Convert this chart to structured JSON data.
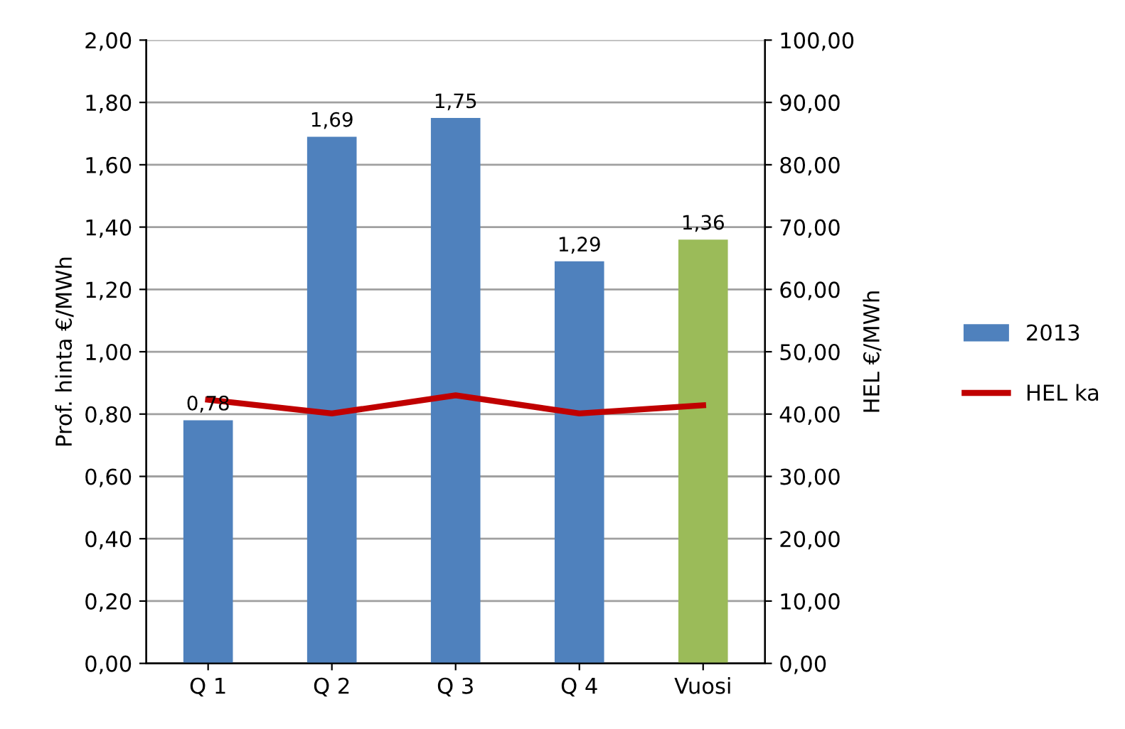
{
  "chart_data": {
    "type": "bar",
    "categories": [
      "Q 1",
      "Q 2",
      "Q 3",
      "Q 4",
      "Vuosi"
    ],
    "ylabel": "Prof. hinta €/MWh",
    "y2label": "HEL €/MWh",
    "series": [
      {
        "name": "2013",
        "color": "#4f81bd",
        "colors": [
          "#4f81bd",
          "#4f81bd",
          "#4f81bd",
          "#4f81bd",
          "#9bbb59"
        ],
        "values": [
          0.78,
          1.69,
          1.75,
          1.29,
          1.36
        ],
        "value_labels": [
          "0,78",
          "1,69",
          "1,75",
          "1,29",
          "1,36"
        ]
      },
      {
        "name": "HEL ka",
        "type": "line",
        "axis": "y2",
        "color": "#c00000",
        "values": [
          42.3,
          40.1,
          43.0,
          40.1,
          41.4
        ]
      }
    ],
    "ylim": [
      0,
      2
    ],
    "yticks": [
      {
        "value": 0,
        "label": "0,00"
      },
      {
        "value": 0.2,
        "label": "0,20"
      },
      {
        "value": 0.4,
        "label": "0,40"
      },
      {
        "value": 0.6,
        "label": "0,60"
      },
      {
        "value": 0.8,
        "label": "0,80"
      },
      {
        "value": 1.0,
        "label": "1,00"
      },
      {
        "value": 1.2,
        "label": "1,20"
      },
      {
        "value": 1.4,
        "label": "1,40"
      },
      {
        "value": 1.6,
        "label": "1,60"
      },
      {
        "value": 1.8,
        "label": "1,80"
      },
      {
        "value": 2.0,
        "label": "2,00"
      }
    ],
    "y2lim": [
      0,
      100
    ],
    "y2ticks": [
      {
        "value": 0,
        "label": "0,00"
      },
      {
        "value": 10,
        "label": "10,00"
      },
      {
        "value": 20,
        "label": "20,00"
      },
      {
        "value": 30,
        "label": "30,00"
      },
      {
        "value": 40,
        "label": "40,00"
      },
      {
        "value": 50,
        "label": "50,00"
      },
      {
        "value": 60,
        "label": "60,00"
      },
      {
        "value": 70,
        "label": "70,00"
      },
      {
        "value": 80,
        "label": "80,00"
      },
      {
        "value": 90,
        "label": "90,00"
      },
      {
        "value": 100,
        "label": "100,00"
      }
    ],
    "grid": "y",
    "legend": "right",
    "marker": "none",
    "line_style": "solid"
  }
}
